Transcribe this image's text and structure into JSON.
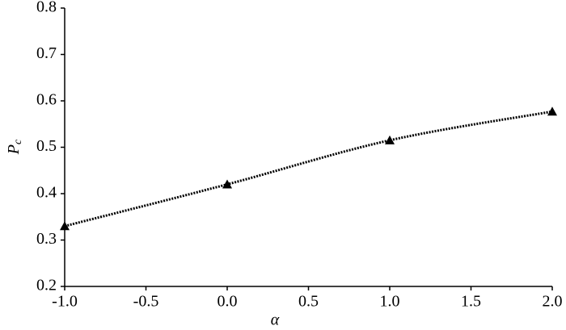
{
  "chart_data": {
    "type": "line",
    "xlabel": "α",
    "ylabel": "P",
    "ylabel_sub": "c",
    "x": [
      -1.0,
      0.0,
      1.0,
      2.0
    ],
    "series": [
      {
        "color": "#000000",
        "marker": "triangle",
        "linestyle": "dotted",
        "values": [
          0.33,
          0.42,
          0.515,
          0.577
        ]
      }
    ],
    "xlim": [
      -1.0,
      2.0
    ],
    "xticks": [
      {
        "value": -1.0,
        "label": "-1.0"
      },
      {
        "value": -0.5,
        "label": "-0.5"
      },
      {
        "value": 0,
        "label": "0.0"
      },
      {
        "value": 0.5,
        "label": "0.5"
      },
      {
        "value": 1,
        "label": "1.0"
      },
      {
        "value": 1.5,
        "label": "1.5"
      },
      {
        "value": 2,
        "label": "2.0"
      }
    ],
    "ylim": [
      0.2,
      0.8
    ],
    "yticks": [
      0.2,
      0.3,
      0.4,
      0.5,
      0.6,
      0.7,
      0.8
    ],
    "grid": false
  }
}
